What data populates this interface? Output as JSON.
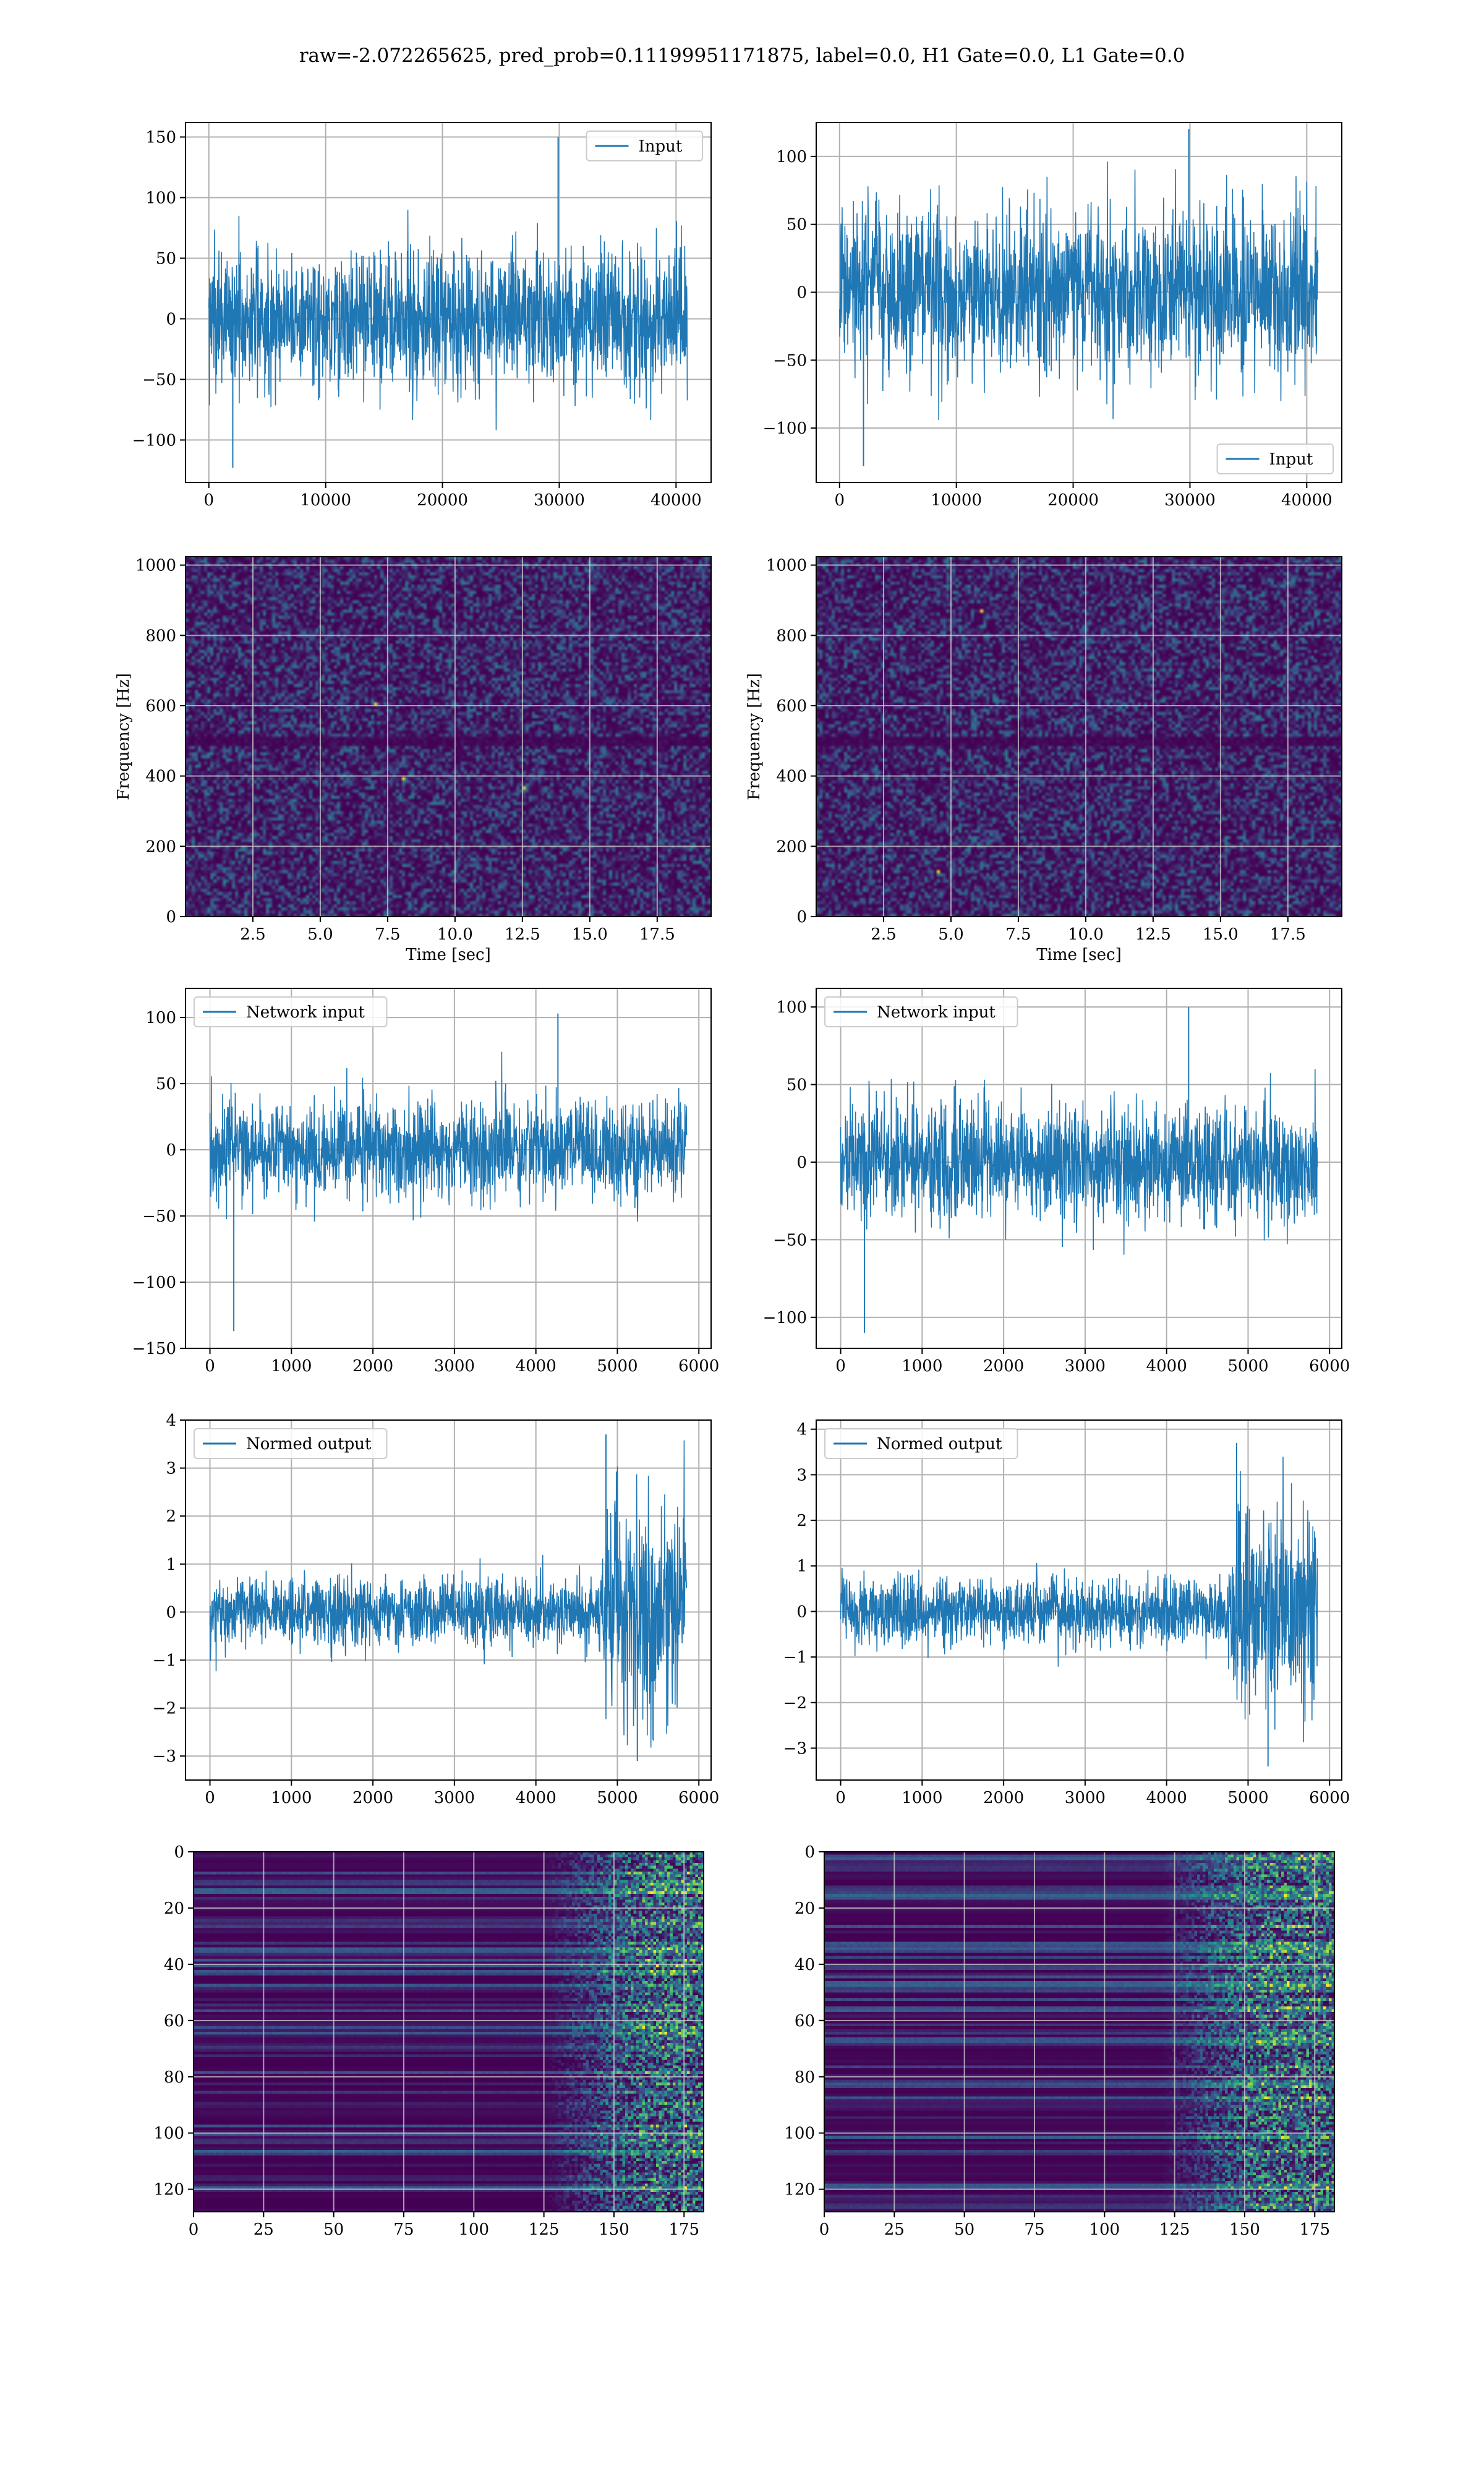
{
  "figure": {
    "suptitle": "raw=-2.072265625, pred_prob=0.11199951171875, label=0.0, H1 Gate=0.0, L1 Gate=0.0",
    "colors": {
      "line": "#1f77b4",
      "viridis_dark": "#440154",
      "viridis_blue": "#31688e",
      "viridis_teal": "#21908d",
      "viridis_green": "#5ec962",
      "viridis_yellow": "#fde725"
    }
  },
  "chart_data": [
    {
      "id": "input-h1",
      "type": "line",
      "legend": "Input",
      "legend_loc": "upper right",
      "xlim": [
        -2000,
        43000
      ],
      "ylim": [
        -135,
        162
      ],
      "xticks": [
        0,
        10000,
        20000,
        30000,
        40000
      ],
      "yticks": [
        -100,
        -50,
        0,
        50,
        100,
        150
      ],
      "xlabel": "",
      "ylabel": "",
      "grid": true,
      "series": [
        {
          "name": "Input",
          "x_range": [
            0,
            40960
          ],
          "envelope": {
            "core": [
              -62,
              62
            ],
            "spikes": [
              -123,
              150
            ]
          }
        }
      ]
    },
    {
      "id": "input-l1",
      "type": "line",
      "legend": "Input",
      "legend_loc": "lower right",
      "xlim": [
        -2000,
        43000
      ],
      "ylim": [
        -140,
        125
      ],
      "xticks": [
        0,
        10000,
        20000,
        30000,
        40000
      ],
      "yticks": [
        -100,
        -50,
        0,
        50,
        100
      ],
      "xlabel": "",
      "ylabel": "",
      "grid": true,
      "series": [
        {
          "name": "Input",
          "x_range": [
            0,
            40960
          ],
          "envelope": {
            "core": [
              -65,
              65
            ],
            "spikes": [
              -128,
              120
            ]
          }
        }
      ]
    },
    {
      "id": "spectrogram-h1",
      "type": "heatmap",
      "colormap": "viridis",
      "xlim": [
        0,
        19.5
      ],
      "ylim": [
        0,
        1024
      ],
      "xticks": [
        2.5,
        5.0,
        7.5,
        10.0,
        12.5,
        15.0,
        17.5
      ],
      "yticks": [
        0,
        200,
        400,
        600,
        800,
        1000
      ],
      "xlabel": "Time [sec]",
      "ylabel": "Frequency [Hz]",
      "grid": true,
      "description_values": {
        "dark_band_hz": [
          490,
          520
        ],
        "hot_spots": [
          [
            12.5,
            370
          ],
          [
            8.0,
            400
          ],
          [
            7.0,
            610
          ]
        ]
      }
    },
    {
      "id": "spectrogram-l1",
      "type": "heatmap",
      "colormap": "viridis",
      "xlim": [
        0,
        19.5
      ],
      "ylim": [
        0,
        1024
      ],
      "xticks": [
        2.5,
        5.0,
        7.5,
        10.0,
        12.5,
        15.0,
        17.5
      ],
      "yticks": [
        0,
        200,
        400,
        600,
        800,
        1000
      ],
      "xlabel": "Time [sec]",
      "ylabel": "Frequency [Hz]",
      "grid": true,
      "description_values": {
        "dark_band_hz": [
          490,
          520
        ],
        "hot_spots": [
          [
            6.1,
            870
          ],
          [
            4.5,
            130
          ]
        ]
      }
    },
    {
      "id": "network-input-h1",
      "type": "line",
      "legend": "Network input",
      "legend_loc": "upper left",
      "xlim": [
        -300,
        6150
      ],
      "ylim": [
        -150,
        122
      ],
      "xticks": [
        0,
        1000,
        2000,
        3000,
        4000,
        5000,
        6000
      ],
      "yticks": [
        -150,
        -100,
        -50,
        0,
        50,
        100
      ],
      "xlabel": "",
      "ylabel": "",
      "grid": true,
      "series": [
        {
          "name": "Network input",
          "x_range": [
            0,
            5850
          ],
          "envelope": {
            "core": [
              -40,
              40
            ],
            "spikes": [
              -137,
              103
            ]
          }
        }
      ]
    },
    {
      "id": "network-input-l1",
      "type": "line",
      "legend": "Network input",
      "legend_loc": "upper left",
      "xlim": [
        -300,
        6150
      ],
      "ylim": [
        -120,
        112
      ],
      "xticks": [
        0,
        1000,
        2000,
        3000,
        4000,
        5000,
        6000
      ],
      "yticks": [
        -100,
        -50,
        0,
        50,
        100
      ],
      "xlabel": "",
      "ylabel": "",
      "grid": true,
      "series": [
        {
          "name": "Network input",
          "x_range": [
            0,
            5850
          ],
          "envelope": {
            "core": [
              -40,
              40
            ],
            "spikes": [
              -110,
              100
            ]
          }
        }
      ]
    },
    {
      "id": "normed-output-h1",
      "type": "line",
      "legend": "Normed output",
      "legend_loc": "upper left",
      "xlim": [
        -300,
        6150
      ],
      "ylim": [
        -3.5,
        4.0
      ],
      "xticks": [
        0,
        1000,
        2000,
        3000,
        4000,
        5000,
        6000
      ],
      "yticks": [
        -3,
        -2,
        -1,
        0,
        1,
        2,
        3,
        4
      ],
      "xlabel": "",
      "ylabel": "",
      "grid": true,
      "series": [
        {
          "name": "Normed output",
          "x_range": [
            0,
            5850
          ],
          "burst_start": 4750,
          "envelope": {
            "core": [
              -0.8,
              0.8
            ],
            "burst": [
              -3.1,
              3.7
            ]
          }
        }
      ]
    },
    {
      "id": "normed-output-l1",
      "type": "line",
      "legend": "Normed output",
      "legend_loc": "upper left",
      "xlim": [
        -300,
        6150
      ],
      "ylim": [
        -3.7,
        4.2
      ],
      "xticks": [
        0,
        1000,
        2000,
        3000,
        4000,
        5000,
        6000
      ],
      "yticks": [
        -3,
        -2,
        -1,
        0,
        1,
        2,
        3,
        4
      ],
      "xlabel": "",
      "ylabel": "",
      "grid": true,
      "series": [
        {
          "name": "Normed output",
          "x_range": [
            0,
            5850
          ],
          "burst_start": 4750,
          "envelope": {
            "core": [
              -0.8,
              0.8
            ],
            "burst": [
              -3.4,
              3.7
            ]
          }
        }
      ]
    },
    {
      "id": "feature-map-h1",
      "type": "heatmap",
      "colormap": "viridis",
      "xlim": [
        0,
        182
      ],
      "ylim": [
        128,
        0
      ],
      "xticks": [
        0,
        25,
        50,
        75,
        100,
        125,
        150,
        175
      ],
      "yticks": [
        0,
        20,
        40,
        60,
        80,
        100,
        120
      ],
      "xlabel": "",
      "ylabel": "",
      "grid": true,
      "description_values": {
        "activity_start_col": 125,
        "activity_peak_col": 160
      }
    },
    {
      "id": "feature-map-l1",
      "type": "heatmap",
      "colormap": "viridis",
      "xlim": [
        0,
        182
      ],
      "ylim": [
        128,
        0
      ],
      "xticks": [
        0,
        25,
        50,
        75,
        100,
        125,
        150,
        175
      ],
      "yticks": [
        0,
        20,
        40,
        60,
        80,
        100,
        120
      ],
      "xlabel": "",
      "ylabel": "",
      "grid": true,
      "description_values": {
        "activity_start_col": 120,
        "activity_peak_col": 155
      }
    }
  ]
}
